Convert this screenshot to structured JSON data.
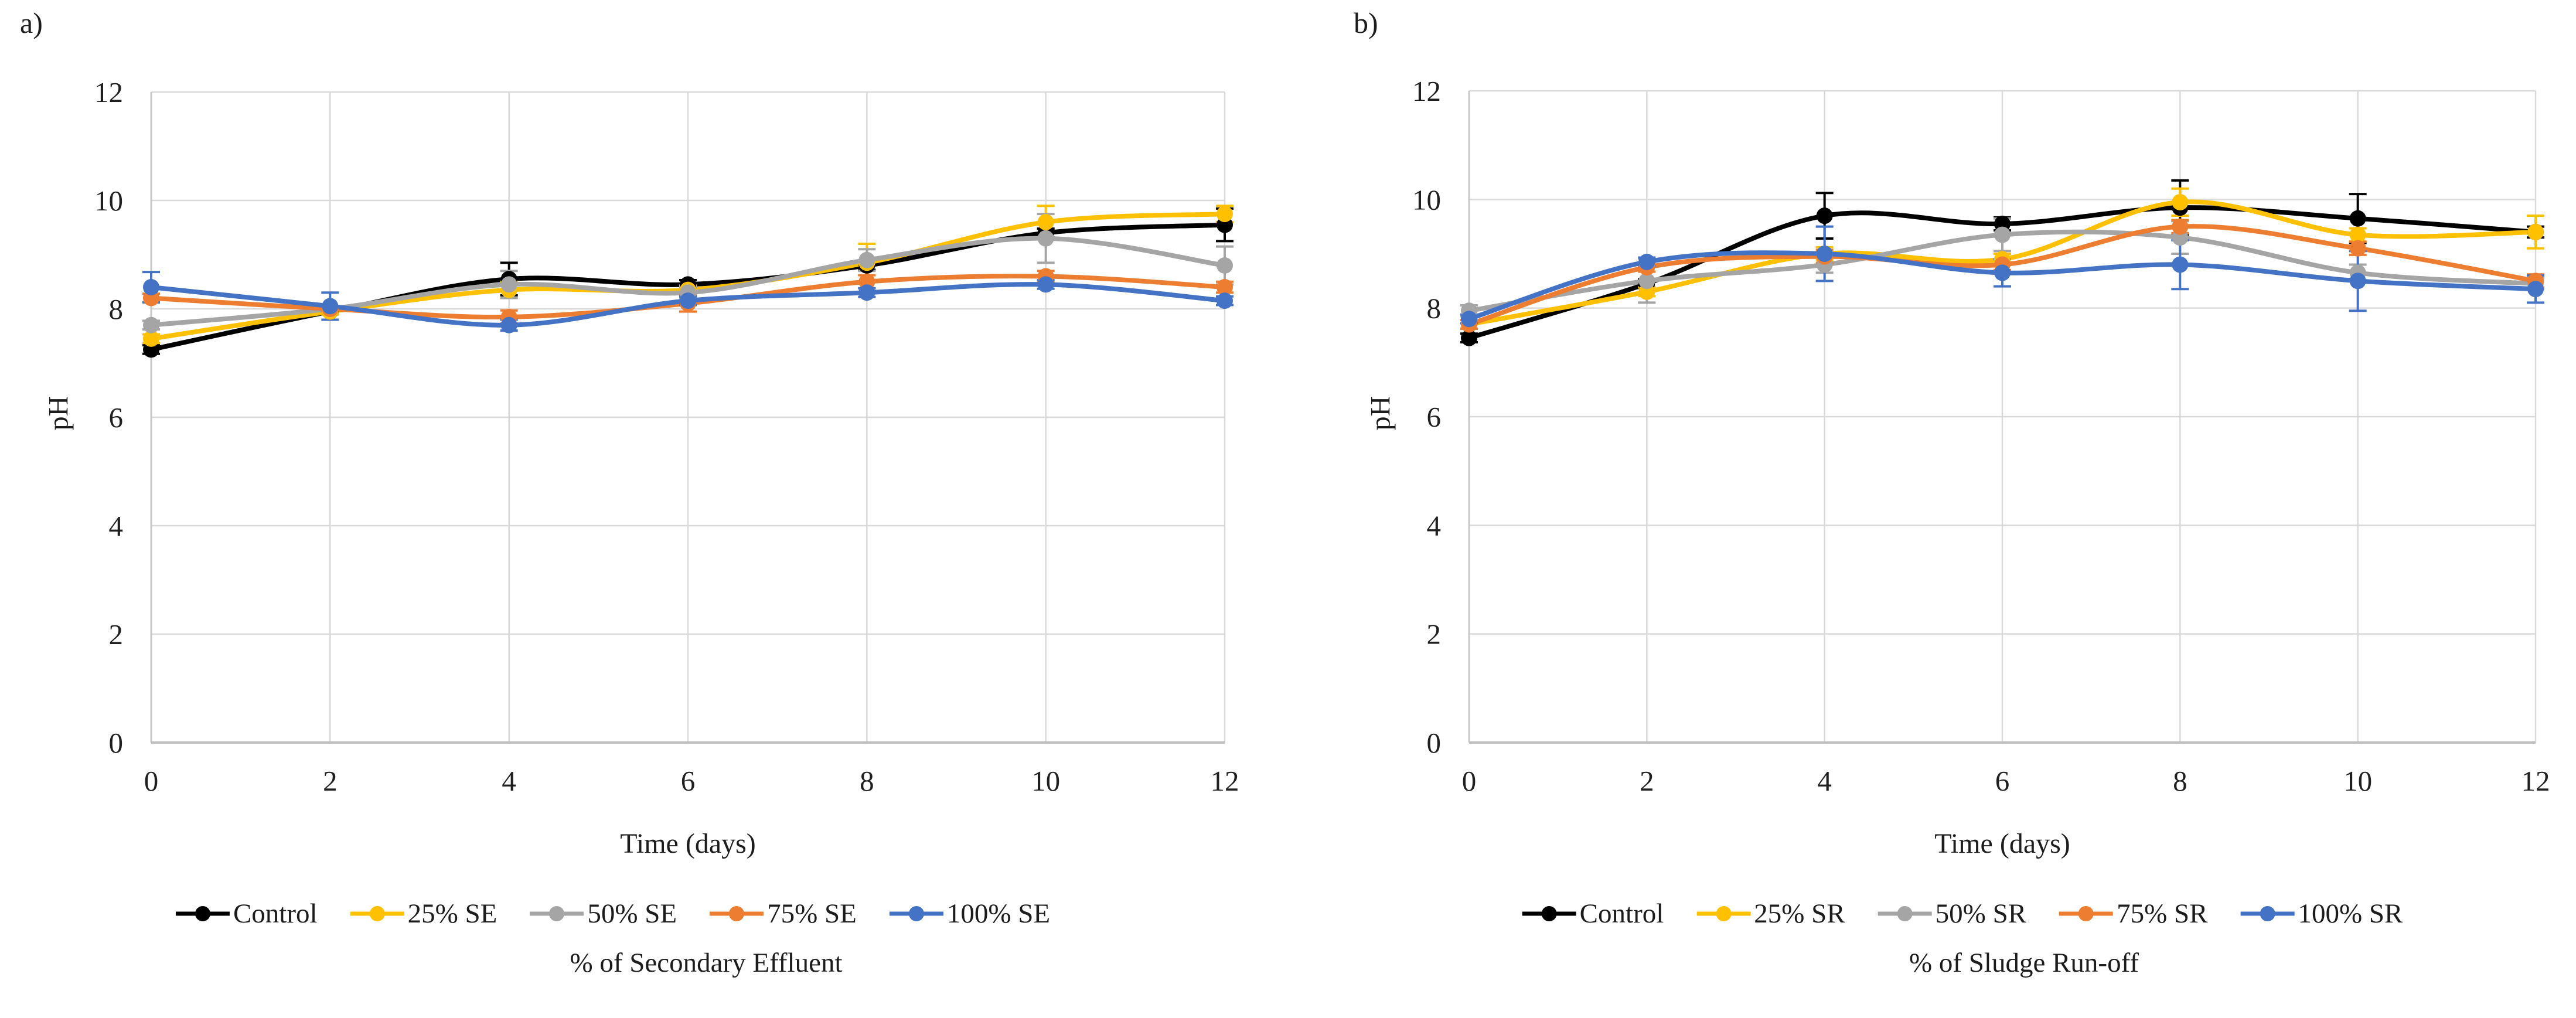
{
  "chart_data": [
    {
      "type": "line",
      "panel_label": "a)",
      "xlabel": "Time (days)",
      "ylabel": "pH",
      "caption": "% of Secondary Effluent",
      "x": [
        0,
        2,
        4,
        6,
        8,
        10,
        12
      ],
      "xticks": [
        0,
        2,
        4,
        6,
        8,
        10,
        12
      ],
      "yticks": [
        0,
        2,
        4,
        6,
        8,
        10,
        12
      ],
      "xlim": [
        0,
        12
      ],
      "ylim": [
        0,
        12
      ],
      "grid": "both",
      "legend_position": "bottom",
      "marker": "circle",
      "line_style": "smooth",
      "series": [
        {
          "name": "Control",
          "color": "#000000",
          "values": [
            7.25,
            7.95,
            8.55,
            8.45,
            8.8,
            9.4,
            9.55
          ],
          "errors": [
            0.08,
            0.05,
            0.3,
            0.08,
            0.08,
            0.08,
            0.3
          ]
        },
        {
          "name": "25% SE",
          "color": "#FFC000",
          "values": [
            7.45,
            7.95,
            8.35,
            8.35,
            8.85,
            9.6,
            9.75
          ],
          "errors": [
            0.08,
            0.05,
            0.15,
            0.08,
            0.35,
            0.3,
            0.15
          ]
        },
        {
          "name": "50% SE",
          "color": "#A5A5A5",
          "values": [
            7.7,
            8.0,
            8.45,
            8.3,
            8.9,
            9.3,
            8.8
          ],
          "errors": [
            0.08,
            0.05,
            0.25,
            0.1,
            0.2,
            0.45,
            0.35
          ]
        },
        {
          "name": "75% SE",
          "color": "#ED7D31",
          "values": [
            8.2,
            8.0,
            7.85,
            8.1,
            8.5,
            8.6,
            8.4
          ],
          "errors": [
            0.08,
            0.05,
            0.12,
            0.15,
            0.12,
            0.1,
            0.1
          ]
        },
        {
          "name": "100% SE",
          "color": "#4472C4",
          "values": [
            8.4,
            8.05,
            7.7,
            8.15,
            8.3,
            8.45,
            8.15
          ],
          "errors": [
            0.28,
            0.25,
            0.1,
            0.08,
            0.08,
            0.08,
            0.08
          ]
        }
      ]
    },
    {
      "type": "line",
      "panel_label": "b)",
      "xlabel": "Time (days)",
      "ylabel": "pH",
      "caption": "% of Sludge Run-off",
      "x": [
        0,
        2,
        4,
        6,
        8,
        10,
        12
      ],
      "xticks": [
        0,
        2,
        4,
        6,
        8,
        10,
        12
      ],
      "yticks": [
        0,
        2,
        4,
        6,
        8,
        10,
        12
      ],
      "xlim": [
        0,
        12
      ],
      "ylim": [
        0,
        12
      ],
      "grid": "both",
      "legend_position": "bottom",
      "marker": "circle",
      "line_style": "smooth",
      "series": [
        {
          "name": "Control",
          "color": "#000000",
          "values": [
            7.45,
            8.45,
            9.7,
            9.55,
            9.85,
            9.65,
            9.4
          ],
          "errors": [
            0.08,
            0.08,
            0.42,
            0.12,
            0.5,
            0.45,
            0.1
          ]
        },
        {
          "name": "25% SR",
          "color": "#FFC000",
          "values": [
            7.7,
            8.3,
            9.0,
            8.9,
            9.95,
            9.35,
            9.4
          ],
          "errors": [
            0.08,
            0.08,
            0.12,
            0.1,
            0.25,
            0.12,
            0.3
          ]
        },
        {
          "name": "50% SR",
          "color": "#A5A5A5",
          "values": [
            7.95,
            8.5,
            8.8,
            9.35,
            9.3,
            8.65,
            8.45
          ],
          "errors": [
            0.1,
            0.4,
            0.15,
            0.3,
            0.3,
            0.15,
            0.1
          ]
        },
        {
          "name": "75% SR",
          "color": "#ED7D31",
          "values": [
            7.7,
            8.75,
            8.95,
            8.8,
            9.5,
            9.1,
            8.5
          ],
          "errors": [
            0.08,
            0.08,
            0.12,
            0.1,
            0.12,
            0.12,
            0.12
          ]
        },
        {
          "name": "100% SR",
          "color": "#4472C4",
          "values": [
            7.8,
            8.85,
            9.0,
            8.65,
            8.8,
            8.5,
            8.35
          ],
          "errors": [
            0.08,
            0.08,
            0.5,
            0.25,
            0.45,
            0.55,
            0.25
          ]
        }
      ]
    }
  ],
  "style": {
    "gridline_color": "#D9D9D9",
    "axis_line_color": "#BFBFBF",
    "text_color": "#1f1f1f",
    "background": "#FFFFFF"
  }
}
